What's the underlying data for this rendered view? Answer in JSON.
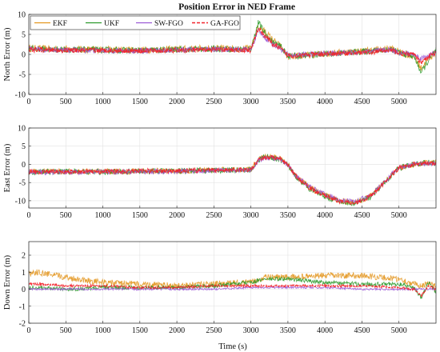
{
  "figure": {
    "title": "Position Error in NED Frame",
    "xlabel": "Time (s)"
  },
  "colors": {
    "EKF": "#e3961f",
    "UKF": "#2b9a2b",
    "SW-FGO": "#9b59d6",
    "GA-FGO": "#f2242c"
  },
  "legend": {
    "placement": "top-left",
    "entries": [
      "EKF",
      "UKF",
      "SW-FGO",
      "GA-FGO"
    ]
  },
  "chart_data": [
    {
      "type": "line",
      "ylabel": "North Error (m)",
      "xlim": [
        0,
        5500
      ],
      "ylim": [
        -10,
        10
      ],
      "xticks": [
        0,
        500,
        1000,
        1500,
        2000,
        2500,
        3000,
        3500,
        4000,
        4500,
        5000
      ],
      "yticks": [
        -10,
        -5,
        0,
        5,
        10
      ],
      "grid": true,
      "series": [
        {
          "name": "EKF",
          "x": [
            0,
            500,
            1000,
            1500,
            2000,
            2500,
            3000,
            3100,
            3200,
            3300,
            3400,
            3500,
            3600,
            4000,
            4500,
            4900,
            5000,
            5200,
            5300,
            5400,
            5500
          ],
          "y": [
            1.5,
            1.3,
            1.2,
            1.1,
            1.3,
            1.5,
            1.4,
            7.0,
            5.5,
            3.5,
            2.0,
            -0.5,
            -0.5,
            0.2,
            0.8,
            1.5,
            0.5,
            -0.5,
            -3.5,
            -1.0,
            0.5
          ]
        },
        {
          "name": "UKF",
          "x": [
            0,
            500,
            1000,
            1500,
            2000,
            2500,
            3000,
            3100,
            3200,
            3300,
            3400,
            3500,
            3600,
            4000,
            4500,
            4900,
            5000,
            5200,
            5300,
            5400,
            5500
          ],
          "y": [
            1.4,
            1.2,
            1.1,
            1.0,
            1.2,
            1.4,
            1.3,
            8.0,
            5.0,
            3.0,
            2.0,
            -0.4,
            -0.4,
            0.1,
            0.7,
            1.3,
            0.4,
            -0.4,
            -4.5,
            -1.5,
            1.0
          ]
        },
        {
          "name": "SW-FGO",
          "x": [
            0,
            500,
            1000,
            1500,
            2000,
            2500,
            3000,
            3100,
            3200,
            3300,
            3400,
            3500,
            3600,
            4000,
            4500,
            4900,
            5000,
            5200,
            5300,
            5400,
            5500
          ],
          "y": [
            1.3,
            1.1,
            1.0,
            0.9,
            1.1,
            1.3,
            1.2,
            6.0,
            4.0,
            2.5,
            1.5,
            -0.2,
            -0.2,
            0.2,
            0.6,
            1.2,
            0.4,
            0.0,
            -1.0,
            -0.2,
            0.3
          ]
        },
        {
          "name": "GA-FGO",
          "x": [
            0,
            500,
            1000,
            1500,
            2000,
            2500,
            3000,
            3100,
            3200,
            3300,
            3400,
            3500,
            3600,
            4000,
            4500,
            4900,
            5000,
            5200,
            5300,
            5400,
            5500
          ],
          "y": [
            1.2,
            1.0,
            1.0,
            0.9,
            1.0,
            1.2,
            1.1,
            6.5,
            4.5,
            2.5,
            1.5,
            -0.3,
            -0.3,
            0.1,
            0.5,
            1.0,
            0.3,
            0.0,
            -2.0,
            -0.5,
            0.3
          ]
        }
      ]
    },
    {
      "type": "line",
      "ylabel": "East Error (m)",
      "xlim": [
        0,
        5500
      ],
      "ylim": [
        -12,
        10
      ],
      "xticks": [
        0,
        500,
        1000,
        1500,
        2000,
        2500,
        3000,
        3500,
        4000,
        4500,
        5000
      ],
      "yticks": [
        -10,
        -5,
        0,
        5,
        10
      ],
      "grid": true,
      "series": [
        {
          "name": "EKF",
          "x": [
            0,
            500,
            1000,
            1500,
            2000,
            2500,
            3000,
            3100,
            3200,
            3300,
            3400,
            3500,
            3600,
            3800,
            4000,
            4200,
            4400,
            4600,
            4800,
            4900,
            5000,
            5200,
            5400,
            5500
          ],
          "y": [
            -2.0,
            -2.0,
            -2.0,
            -1.8,
            -1.8,
            -1.6,
            -1.4,
            1.5,
            2.0,
            2.0,
            1.5,
            0.0,
            -3.0,
            -6.5,
            -8.5,
            -10.0,
            -10.5,
            -9.0,
            -5.0,
            -3.0,
            -1.0,
            0.0,
            0.5,
            0.5
          ]
        },
        {
          "name": "UKF",
          "x": [
            0,
            500,
            1000,
            1500,
            2000,
            2500,
            3000,
            3100,
            3200,
            3300,
            3400,
            3500,
            3600,
            3800,
            4000,
            4200,
            4400,
            4600,
            4800,
            4900,
            5000,
            5200,
            5400,
            5500
          ],
          "y": [
            -2.1,
            -2.0,
            -2.1,
            -1.9,
            -1.8,
            -1.7,
            -1.5,
            1.2,
            2.2,
            1.8,
            1.2,
            -0.2,
            -3.2,
            -6.8,
            -8.8,
            -10.2,
            -10.8,
            -9.2,
            -5.2,
            -3.0,
            -1.0,
            0.0,
            0.5,
            0.3
          ]
        },
        {
          "name": "SW-FGO",
          "x": [
            0,
            500,
            1000,
            1500,
            2000,
            2500,
            3000,
            3100,
            3200,
            3300,
            3400,
            3500,
            3600,
            3800,
            4000,
            4200,
            4400,
            4600,
            4800,
            4900,
            5000,
            5200,
            5400,
            5500
          ],
          "y": [
            -2.2,
            -2.1,
            -2.1,
            -2.0,
            -1.9,
            -1.7,
            -1.5,
            1.0,
            1.8,
            1.8,
            1.2,
            -0.3,
            -3.0,
            -6.2,
            -8.2,
            -9.8,
            -10.2,
            -8.8,
            -5.0,
            -2.8,
            -1.0,
            0.0,
            0.3,
            0.2
          ]
        },
        {
          "name": "GA-FGO",
          "x": [
            0,
            500,
            1000,
            1500,
            2000,
            2500,
            3000,
            3100,
            3200,
            3300,
            3400,
            3500,
            3600,
            3800,
            4000,
            4200,
            4400,
            4600,
            4800,
            4900,
            5000,
            5200,
            5400,
            5500
          ],
          "y": [
            -2.0,
            -2.0,
            -2.0,
            -1.8,
            -1.8,
            -1.6,
            -1.4,
            1.3,
            2.0,
            1.9,
            1.3,
            -0.1,
            -3.1,
            -6.6,
            -8.6,
            -10.1,
            -10.6,
            -9.0,
            -5.1,
            -3.0,
            -1.0,
            0.0,
            0.4,
            0.3
          ]
        }
      ]
    },
    {
      "type": "line",
      "ylabel": "Down Error (m)",
      "xlim": [
        0,
        5500
      ],
      "ylim": [
        -2,
        2.8
      ],
      "xticks": [
        0,
        500,
        1000,
        1500,
        2000,
        2500,
        3000,
        3500,
        4000,
        4500,
        5000
      ],
      "yticks": [
        -2,
        -1,
        0,
        1,
        2
      ],
      "grid": true,
      "series": [
        {
          "name": "EKF",
          "x": [
            0,
            100,
            500,
            1000,
            1500,
            2000,
            2500,
            3000,
            3200,
            3500,
            4000,
            4500,
            5000,
            5200,
            5300,
            5400,
            5500
          ],
          "y": [
            0.9,
            1.0,
            0.7,
            0.4,
            0.3,
            0.2,
            0.3,
            0.4,
            0.7,
            0.7,
            0.8,
            0.8,
            0.6,
            0.3,
            0.2,
            0.3,
            0.2
          ]
        },
        {
          "name": "UKF",
          "x": [
            0,
            100,
            500,
            1000,
            1500,
            2000,
            2500,
            3000,
            3200,
            3500,
            4000,
            4500,
            5000,
            5200,
            5300,
            5400,
            5500
          ],
          "y": [
            0.1,
            0.1,
            0.0,
            0.1,
            0.1,
            0.1,
            0.2,
            0.4,
            0.6,
            0.6,
            0.4,
            0.3,
            0.3,
            0.1,
            -0.5,
            0.4,
            -0.2
          ]
        },
        {
          "name": "SW-FGO",
          "x": [
            0,
            100,
            500,
            1000,
            1500,
            2000,
            2500,
            3000,
            3200,
            3500,
            4000,
            4500,
            5000,
            5200,
            5300,
            5400,
            5500
          ],
          "y": [
            0.0,
            0.0,
            0.0,
            0.0,
            0.0,
            0.0,
            0.0,
            0.1,
            0.1,
            0.1,
            0.1,
            0.0,
            0.0,
            0.0,
            0.0,
            0.0,
            0.0
          ]
        },
        {
          "name": "GA-FGO",
          "x": [
            0,
            100,
            500,
            1000,
            1500,
            2000,
            2500,
            3000,
            3200,
            3500,
            4000,
            4500,
            5000,
            5200,
            5300,
            5400,
            5500
          ],
          "y": [
            0.3,
            0.3,
            0.2,
            0.2,
            0.1,
            0.1,
            0.2,
            0.2,
            0.2,
            0.2,
            0.2,
            0.2,
            0.1,
            0.0,
            -0.4,
            0.2,
            0.0
          ]
        }
      ]
    }
  ]
}
